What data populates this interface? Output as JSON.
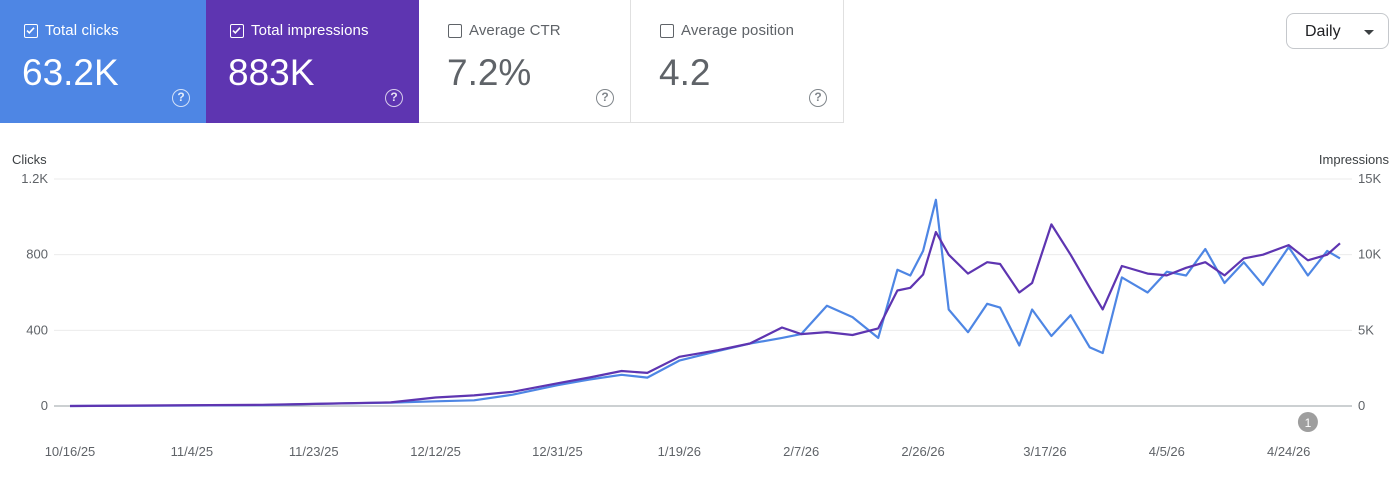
{
  "metrics": [
    {
      "label": "Total clicks",
      "value": "63.2K",
      "checked": true,
      "color": "#4e86e4",
      "help": "?"
    },
    {
      "label": "Total impressions",
      "value": "883K",
      "checked": true,
      "color": "#5e35b1",
      "help": "?"
    },
    {
      "label": "Average CTR",
      "value": "7.2%",
      "checked": false,
      "color": "#ffffff",
      "help": "?"
    },
    {
      "label": "Average position",
      "value": "4.2",
      "checked": false,
      "color": "#ffffff",
      "help": "?"
    }
  ],
  "period_select": {
    "value": "Daily"
  },
  "chart_data": {
    "type": "line",
    "title": "",
    "left_axis": {
      "label": "Clicks",
      "ticks": [
        "0",
        "400",
        "800",
        "1.2K"
      ],
      "ylim": [
        0,
        1200
      ]
    },
    "right_axis": {
      "label": "Impressions",
      "ticks": [
        "0",
        "5K",
        "10K",
        "15K"
      ],
      "ylim": [
        0,
        15000
      ]
    },
    "x_ticks": [
      "10/16/25",
      "11/4/25",
      "11/23/25",
      "12/12/25",
      "12/31/25",
      "1/19/26",
      "2/7/26",
      "2/26/26",
      "3/17/26",
      "4/5/26",
      "4/24/26"
    ],
    "x_range": [
      "10/16/25",
      "5/2/26"
    ],
    "annotation": {
      "label": "1",
      "date": "4/27/26"
    },
    "grid": true,
    "series": [
      {
        "name": "Total clicks",
        "axis": "left",
        "color": "#4e86e4",
        "points": [
          [
            "10/16/25",
            0
          ],
          [
            "10/31/25",
            2
          ],
          [
            "11/15/25",
            5
          ],
          [
            "11/25/25",
            12
          ],
          [
            "12/5/25",
            18
          ],
          [
            "12/12/25",
            25
          ],
          [
            "12/18/25",
            30
          ],
          [
            "12/24/25",
            60
          ],
          [
            "12/31/25",
            110
          ],
          [
            "1/5/26",
            140
          ],
          [
            "1/10/26",
            165
          ],
          [
            "1/14/26",
            150
          ],
          [
            "1/19/26",
            240
          ],
          [
            "1/25/26",
            290
          ],
          [
            "1/30/26",
            330
          ],
          [
            "2/4/26",
            360
          ],
          [
            "2/7/26",
            380
          ],
          [
            "2/11/26",
            530
          ],
          [
            "2/15/26",
            470
          ],
          [
            "2/19/26",
            360
          ],
          [
            "2/22/26",
            720
          ],
          [
            "2/24/26",
            690
          ],
          [
            "2/26/26",
            820
          ],
          [
            "2/28/26",
            1090
          ],
          [
            "3/2/26",
            510
          ],
          [
            "3/5/26",
            390
          ],
          [
            "3/8/26",
            540
          ],
          [
            "3/10/26",
            520
          ],
          [
            "3/13/26",
            320
          ],
          [
            "3/15/26",
            510
          ],
          [
            "3/18/26",
            370
          ],
          [
            "3/21/26",
            480
          ],
          [
            "3/24/26",
            310
          ],
          [
            "3/26/26",
            280
          ],
          [
            "3/29/26",
            680
          ],
          [
            "4/2/26",
            600
          ],
          [
            "4/5/26",
            710
          ],
          [
            "4/8/26",
            690
          ],
          [
            "4/11/26",
            830
          ],
          [
            "4/14/26",
            650
          ],
          [
            "4/17/26",
            760
          ],
          [
            "4/20/26",
            640
          ],
          [
            "4/24/26",
            840
          ],
          [
            "4/27/26",
            690
          ],
          [
            "4/30/26",
            820
          ],
          [
            "5/2/26",
            780
          ]
        ]
      },
      {
        "name": "Total impressions",
        "axis": "right",
        "color": "#5e35b1",
        "points": [
          [
            "10/16/25",
            0
          ],
          [
            "10/31/25",
            40
          ],
          [
            "11/15/25",
            80
          ],
          [
            "11/25/25",
            160
          ],
          [
            "12/5/25",
            240
          ],
          [
            "12/12/25",
            560
          ],
          [
            "12/18/25",
            700
          ],
          [
            "12/24/25",
            940
          ],
          [
            "12/31/25",
            1500
          ],
          [
            "1/5/26",
            1880
          ],
          [
            "1/10/26",
            2310
          ],
          [
            "1/14/26",
            2190
          ],
          [
            "1/19/26",
            3250
          ],
          [
            "1/25/26",
            3690
          ],
          [
            "1/30/26",
            4130
          ],
          [
            "2/4/26",
            5190
          ],
          [
            "2/7/26",
            4750
          ],
          [
            "2/11/26",
            4880
          ],
          [
            "2/15/26",
            4690
          ],
          [
            "2/19/26",
            5130
          ],
          [
            "2/22/26",
            7630
          ],
          [
            "2/24/26",
            7810
          ],
          [
            "2/26/26",
            8690
          ],
          [
            "2/28/26",
            11500
          ],
          [
            "3/2/26",
            10000
          ],
          [
            "3/5/26",
            8750
          ],
          [
            "3/8/26",
            9500
          ],
          [
            "3/10/26",
            9380
          ],
          [
            "3/13/26",
            7500
          ],
          [
            "3/15/26",
            8130
          ],
          [
            "3/18/26",
            12000
          ],
          [
            "3/21/26",
            10000
          ],
          [
            "3/24/26",
            7810
          ],
          [
            "3/26/26",
            6380
          ],
          [
            "3/29/26",
            9250
          ],
          [
            "4/2/26",
            8750
          ],
          [
            "4/5/26",
            8630
          ],
          [
            "4/8/26",
            9130
          ],
          [
            "4/11/26",
            9500
          ],
          [
            "4/14/26",
            8630
          ],
          [
            "4/17/26",
            9750
          ],
          [
            "4/20/26",
            10000
          ],
          [
            "4/24/26",
            10630
          ],
          [
            "4/27/26",
            9630
          ],
          [
            "4/30/26",
            10000
          ],
          [
            "5/2/26",
            10750
          ]
        ]
      }
    ]
  }
}
